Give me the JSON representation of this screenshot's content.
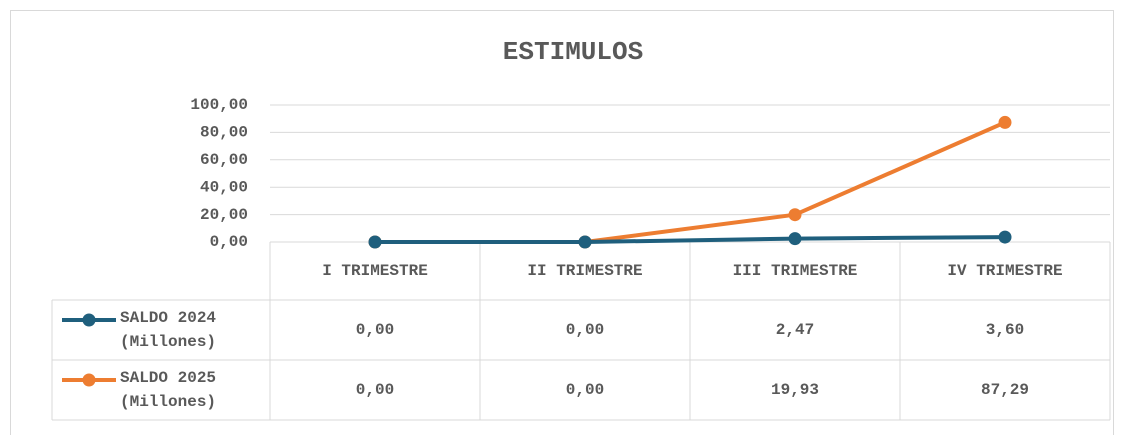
{
  "chart_data": {
    "type": "line",
    "title": "ESTIMULOS",
    "categories": [
      "I TRIMESTRE",
      "II TRIMESTRE",
      "III TRIMESTRE",
      "IV TRIMESTRE"
    ],
    "series": [
      {
        "name": "SALDO 2024 (Millones)",
        "color": "#1f5f7d",
        "values": [
          0,
          0,
          2.47,
          3.6
        ],
        "value_labels": [
          "0,00",
          "0,00",
          "2,47",
          "3,60"
        ]
      },
      {
        "name": "SALDO 2025 (Millones)",
        "color": "#ed7d31",
        "values": [
          0,
          0,
          19.93,
          87.29
        ],
        "value_labels": [
          "0,00",
          "0,00",
          "19,93",
          "87,29"
        ]
      }
    ],
    "ylim": [
      0,
      100
    ],
    "yticks": [
      {
        "value": 0,
        "label": "0,00"
      },
      {
        "value": 20,
        "label": "20,00"
      },
      {
        "value": 40,
        "label": "40,00"
      },
      {
        "value": 60,
        "label": "60,00"
      },
      {
        "value": 80,
        "label": "80,00"
      },
      {
        "value": 100,
        "label": "100,00"
      }
    ],
    "grid": true
  }
}
